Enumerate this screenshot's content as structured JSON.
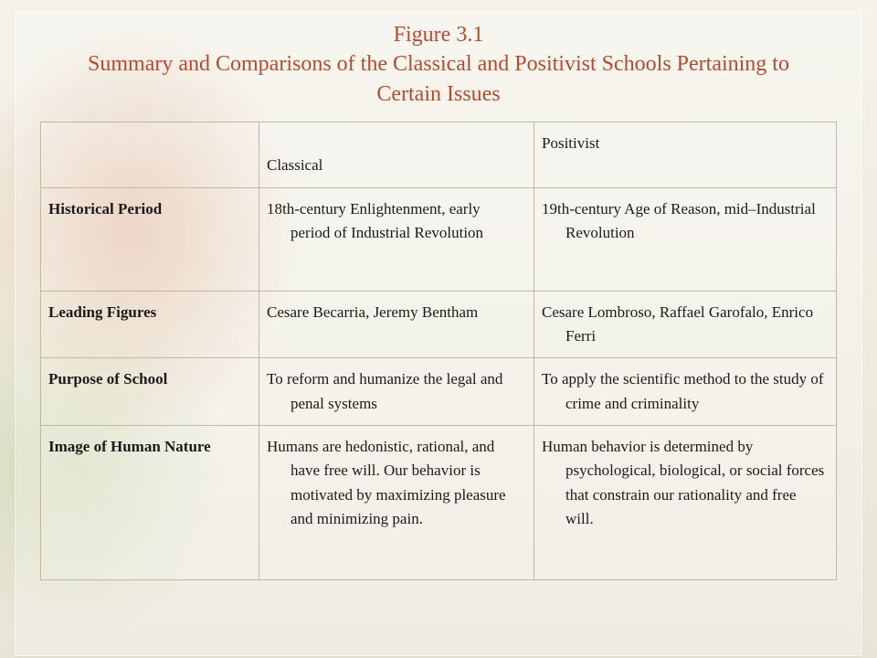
{
  "title": {
    "line1": "Figure 3.1",
    "line2": "Summary and Comparisons of the Classical and Positivist Schools Pertaining to Certain Issues"
  },
  "table": {
    "columns": [
      "",
      "Classical",
      "Positivist"
    ],
    "rows": [
      {
        "label": "Historical Period",
        "classical": "18th-century Enlightenment, early period of Industrial Revolution",
        "positivist": "19th-century Age of Reason, mid–Industrial Revolution"
      },
      {
        "label": "Leading Figures",
        "classical": "Cesare Becarria, Jeremy Bentham",
        "positivist": "Cesare Lombroso, Raffael Garofalo, Enrico Ferri"
      },
      {
        "label": "Purpose of School",
        "classical": "To reform and humanize the legal and penal systems",
        "positivist": "To apply the scientific method to the study of crime and criminality"
      },
      {
        "label": "Image of Human Nature",
        "classical": "Humans are hedonistic, rational, and have free will.  Our behavior is motivated by maximizing pleasure and minimizing pain.",
        "positivist": "Human behavior is determined by psychological, biological, or social forces that constrain our rationality and free will."
      }
    ]
  },
  "colors": {
    "title": "#b8492a",
    "border": "#bfb99f",
    "text": "#1a1a1a",
    "bg_base": "#e8e5d8"
  }
}
